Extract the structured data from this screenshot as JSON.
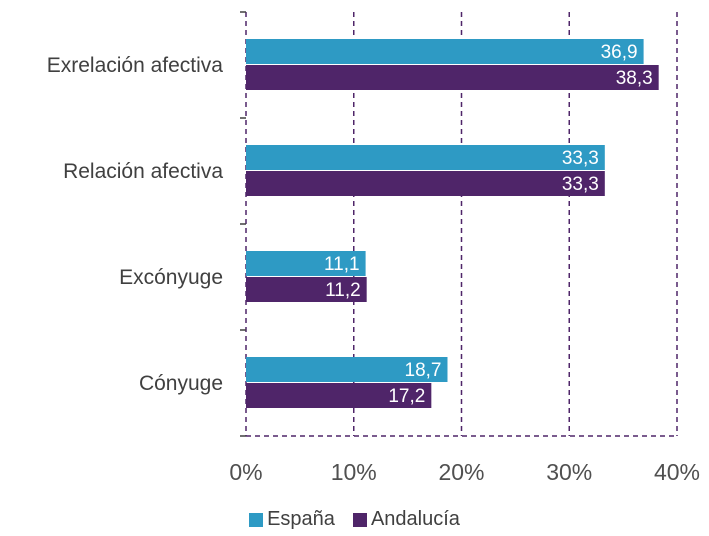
{
  "chart_data": {
    "type": "bar",
    "orientation": "horizontal",
    "categories": [
      "Exrelación afectiva",
      "Relación afectiva",
      "Excónyuge",
      "Cónyuge"
    ],
    "series": [
      {
        "name": "España",
        "values": [
          36.9,
          33.3,
          11.1,
          18.7
        ],
        "labels": [
          "36,9",
          "33,3",
          "11,1",
          "18,7"
        ],
        "color": "#2E9AC4"
      },
      {
        "name": "Andalucía",
        "values": [
          38.3,
          33.3,
          11.2,
          17.2
        ],
        "labels": [
          "38,3",
          "33,3",
          "11,2",
          "17,2"
        ],
        "color": "#4F2569"
      }
    ],
    "xlim": [
      0,
      40
    ],
    "xticks": [
      0,
      10,
      20,
      30,
      40
    ],
    "xtick_labels": [
      "0%",
      "10%",
      "20%",
      "30%",
      "40%"
    ],
    "grid": "vertical dashed",
    "grid_color": "#4F2569",
    "legend": "bottom-center"
  }
}
